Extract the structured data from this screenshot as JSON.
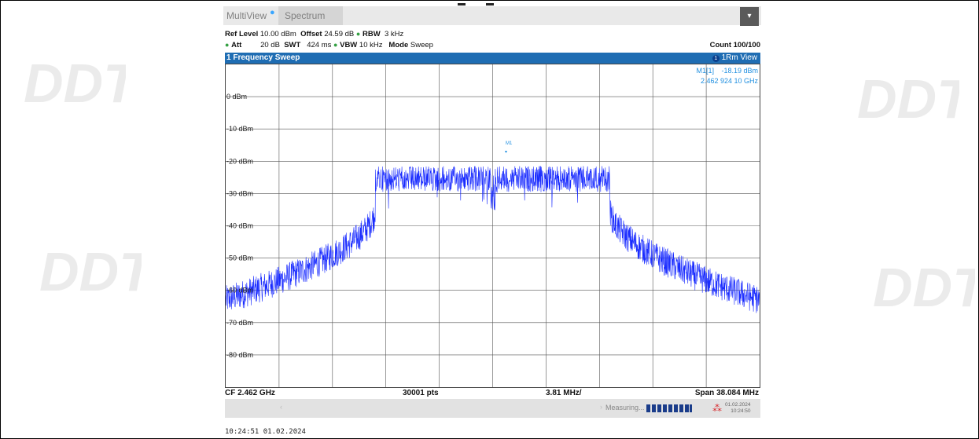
{
  "tabs": {
    "multiview": "MultiView",
    "spectrum": "Spectrum"
  },
  "params": {
    "ref_level_label": "Ref Level",
    "ref_level": "10.00 dBm",
    "offset_label": "Offset",
    "offset": "24.59 dB",
    "rbw_label": "RBW",
    "rbw": "3 kHz",
    "att_label": "Att",
    "att": "20 dB",
    "swt_label": "SWT",
    "swt": "424 ms",
    "vbw_label": "VBW",
    "vbw": "10 kHz",
    "mode_label": "Mode",
    "mode": "Sweep",
    "count": "Count 100/100"
  },
  "window": {
    "title": "1 Frequency Sweep",
    "trace": "1Rm View",
    "trace_num": "1"
  },
  "marker": {
    "name": "M1",
    "label": "M1[1]",
    "level": "-18.19 dBm",
    "freq": "2.462 924 10 GHz"
  },
  "y_axis": {
    "labels": [
      "0 dBm",
      "-10 dBm",
      "-20 dBm",
      "-30 dBm",
      "-40 dBm",
      "-50 dBm",
      "-60 dBm",
      "-70 dBm",
      "-80 dBm"
    ],
    "values": [
      0,
      -10,
      -20,
      -30,
      -40,
      -50,
      -60,
      -70,
      -80
    ],
    "range": [
      -90,
      10
    ]
  },
  "footer": {
    "cf": "CF 2.462 GHz",
    "pts": "30001 pts",
    "div": "3.81 MHz/",
    "span": "Span 38.084 MHz"
  },
  "status": {
    "measuring": "Measuring...",
    "date": "01.02.2024",
    "time": "10:24:50"
  },
  "stamp": "10:24:51  01.02.2024",
  "colors": {
    "trace": "#1a2cff",
    "accent": "#1f6db3",
    "marker": "#1f8fe0"
  }
}
